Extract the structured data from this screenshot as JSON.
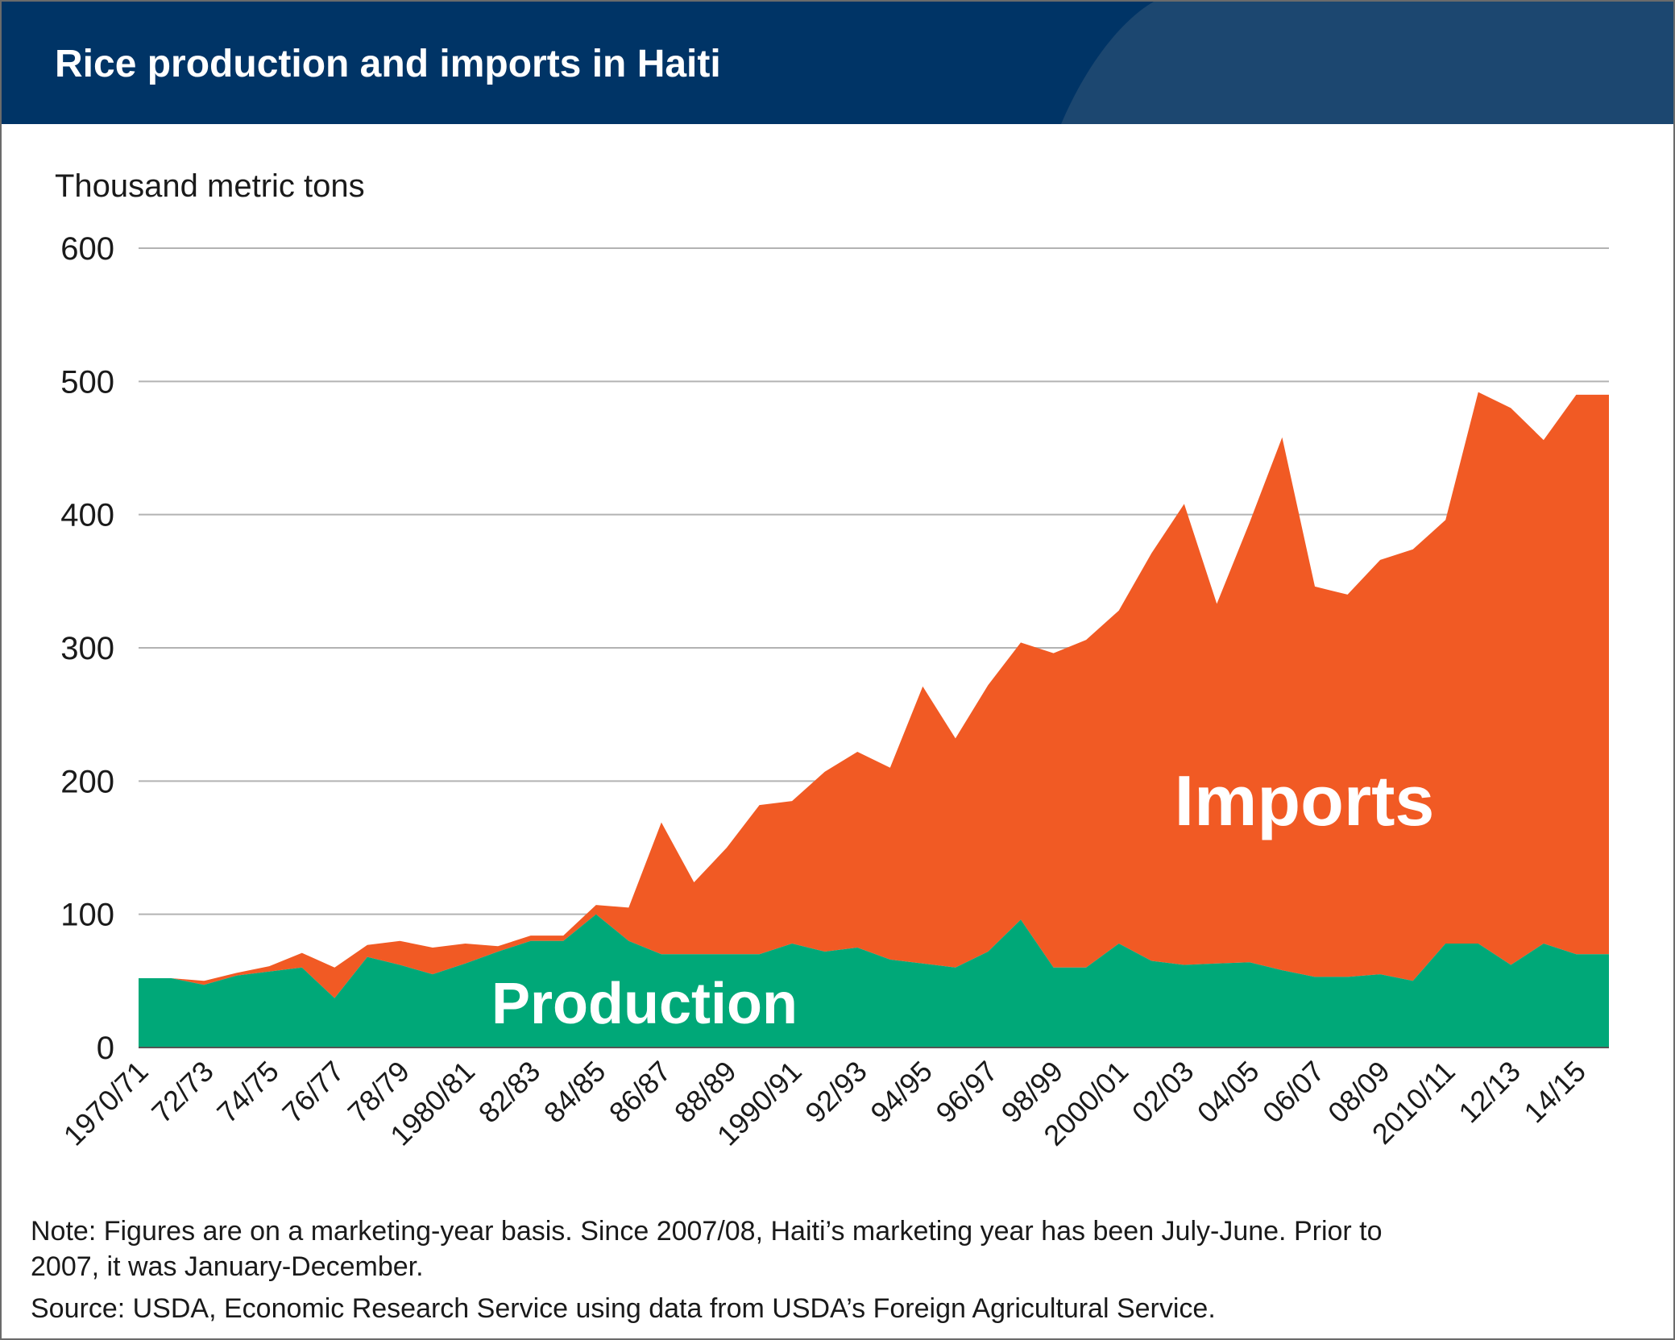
{
  "header": {
    "title": "Rice production and imports in Haiti",
    "background_color": "#003466",
    "arc_color": "#1c4770"
  },
  "chart_data": {
    "type": "area",
    "stacked": true,
    "ylabel": "Thousand metric tons",
    "ylim": [
      0,
      600
    ],
    "yticks": [
      0,
      100,
      200,
      300,
      400,
      500,
      600
    ],
    "grid": true,
    "categories": [
      "1970/71",
      "71/72",
      "72/73",
      "73/74",
      "74/75",
      "75/76",
      "76/77",
      "77/78",
      "78/79",
      "79/80",
      "1980/81",
      "81/82",
      "82/83",
      "83/84",
      "84/85",
      "85/86",
      "86/87",
      "87/88",
      "88/89",
      "89/90",
      "1990/91",
      "91/92",
      "92/93",
      "93/94",
      "94/95",
      "95/96",
      "96/97",
      "97/98",
      "98/99",
      "99/00",
      "2000/01",
      "01/02",
      "02/03",
      "03/04",
      "04/05",
      "05/06",
      "06/07",
      "07/08",
      "08/09",
      "09/10",
      "2010/11",
      "11/12",
      "12/13",
      "13/14",
      "14/15",
      "15/16"
    ],
    "tick_labels": [
      "1970/71",
      "72/73",
      "74/75",
      "76/77",
      "78/79",
      "1980/81",
      "82/83",
      "84/85",
      "86/87",
      "88/89",
      "1990/91",
      "92/93",
      "94/95",
      "96/97",
      "98/99",
      "2000/01",
      "02/03",
      "04/05",
      "06/07",
      "08/09",
      "2010/11",
      "12/13",
      "14/15"
    ],
    "series": [
      {
        "name": "Production",
        "color": "#00a878",
        "values": [
          52,
          52,
          47,
          54,
          57,
          60,
          37,
          68,
          62,
          55,
          63,
          72,
          80,
          80,
          100,
          80,
          70,
          70,
          70,
          70,
          78,
          72,
          75,
          66,
          63,
          60,
          72,
          96,
          60,
          60,
          78,
          65,
          62,
          63,
          64,
          58,
          53,
          53,
          55,
          50,
          78,
          78,
          62,
          78,
          70,
          70
        ]
      },
      {
        "name": "Imports",
        "color": "#f15a24",
        "values": [
          0,
          0,
          3,
          2,
          4,
          11,
          23,
          9,
          18,
          20,
          15,
          4,
          4,
          4,
          7,
          25,
          99,
          54,
          80,
          112,
          107,
          135,
          147,
          144,
          208,
          172,
          200,
          208,
          236,
          246,
          250,
          306,
          346,
          270,
          330,
          400,
          293,
          287,
          311,
          324,
          318,
          414,
          418,
          378,
          420,
          420
        ]
      }
    ],
    "annotations": [
      {
        "text": "Imports",
        "series": "Imports"
      },
      {
        "text": "Production",
        "series": "Production"
      }
    ]
  },
  "notes": {
    "line1": "Note: Figures are on a marketing-year basis. Since 2007/08, Haiti’s marketing year has been July-June. Prior to",
    "line2": "2007, it was January-December.",
    "line3": "Source: USDA, Economic Research Service using data from USDA’s Foreign Agricultural Service."
  }
}
